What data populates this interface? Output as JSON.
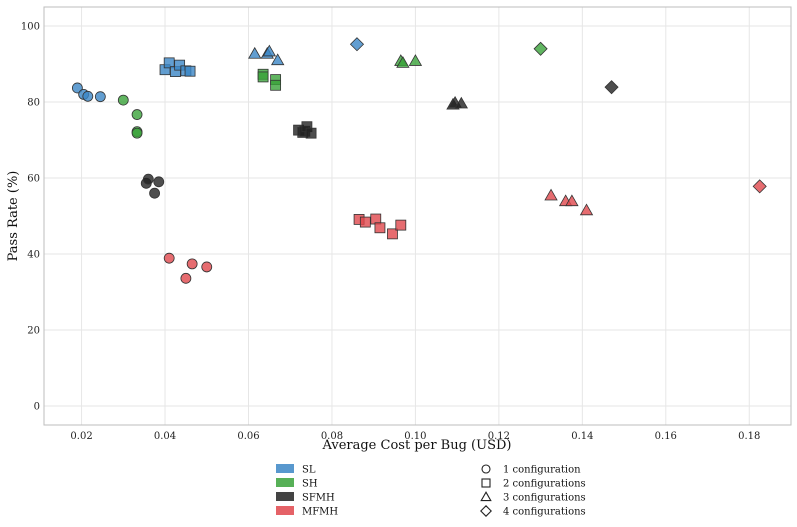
{
  "chart_data": {
    "type": "scatter",
    "title": "",
    "xlabel": "Average Cost per Bug (USD)",
    "ylabel": "Pass Rate (%)",
    "xlim": [
      0.011,
      0.19
    ],
    "ylim": [
      -5,
      105
    ],
    "xticks": [
      0.02,
      0.04,
      0.06,
      0.08,
      0.1,
      0.12,
      0.14,
      0.16,
      0.18
    ],
    "xtick_labels": [
      "0.02",
      "0.04",
      "0.06",
      "0.08",
      "0.10",
      "0.12",
      "0.14",
      "0.16",
      "0.18"
    ],
    "yticks": [
      0,
      20,
      40,
      60,
      80,
      100
    ],
    "ytick_labels": [
      "0",
      "20",
      "40",
      "60",
      "80",
      "100"
    ],
    "grid": true,
    "legend_position": "bottom",
    "color_legend": [
      {
        "name": "SL",
        "color": "#3b86c6"
      },
      {
        "name": "SH",
        "color": "#3aa23a"
      },
      {
        "name": "SFMH",
        "color": "#222222"
      },
      {
        "name": "MFMH",
        "color": "#e0474c"
      }
    ],
    "marker_legend": [
      {
        "marker": "circle",
        "label": "1 configuration"
      },
      {
        "marker": "square",
        "label": "2 configurations"
      },
      {
        "marker": "triangle",
        "label": "3 configurations"
      },
      {
        "marker": "diamond",
        "label": "4 configurations"
      }
    ],
    "series": [
      {
        "name": "SL",
        "color": "#3b86c6",
        "groups": [
          {
            "marker": "circle",
            "points": [
              [
                0.019,
                83.7
              ],
              [
                0.0205,
                82.0
              ],
              [
                0.0215,
                81.5
              ],
              [
                0.0245,
                81.4
              ]
            ]
          },
          {
            "marker": "square",
            "points": [
              [
                0.04,
                88.5
              ],
              [
                0.041,
                90.3
              ],
              [
                0.0425,
                88.0
              ],
              [
                0.0435,
                89.7
              ],
              [
                0.045,
                88.2
              ],
              [
                0.046,
                88.1
              ]
            ]
          },
          {
            "marker": "triangle",
            "points": [
              [
                0.0615,
                92.7
              ],
              [
                0.0645,
                92.7
              ],
              [
                0.065,
                93.3
              ],
              [
                0.067,
                91.0
              ]
            ]
          },
          {
            "marker": "diamond",
            "points": [
              [
                0.086,
                95.2
              ]
            ]
          }
        ]
      },
      {
        "name": "SH",
        "color": "#3aa23a",
        "groups": [
          {
            "marker": "circle",
            "points": [
              [
                0.03,
                80.5
              ],
              [
                0.0333,
                76.7
              ],
              [
                0.0333,
                72.2
              ],
              [
                0.0333,
                71.8
              ]
            ]
          },
          {
            "marker": "square",
            "points": [
              [
                0.0635,
                87.3
              ],
              [
                0.0635,
                86.6
              ],
              [
                0.0665,
                85.9
              ],
              [
                0.0665,
                84.4
              ]
            ]
          },
          {
            "marker": "triangle",
            "points": [
              [
                0.0965,
                90.8
              ],
              [
                0.097,
                90.3
              ],
              [
                0.1,
                90.8
              ]
            ]
          },
          {
            "marker": "diamond",
            "points": [
              [
                0.13,
                94.0
              ]
            ]
          }
        ]
      },
      {
        "name": "SFMH",
        "color": "#222222",
        "groups": [
          {
            "marker": "circle",
            "points": [
              [
                0.0355,
                58.6
              ],
              [
                0.036,
                59.7
              ],
              [
                0.0375,
                56.0
              ],
              [
                0.0385,
                59.0
              ]
            ]
          },
          {
            "marker": "square",
            "points": [
              [
                0.072,
                72.6
              ],
              [
                0.073,
                72.0
              ],
              [
                0.0735,
                72.3
              ],
              [
                0.074,
                73.5
              ],
              [
                0.075,
                71.8
              ]
            ]
          },
          {
            "marker": "triangle",
            "points": [
              [
                0.109,
                79.3
              ],
              [
                0.1095,
                79.8
              ],
              [
                0.111,
                79.6
              ]
            ]
          },
          {
            "marker": "diamond",
            "points": [
              [
                0.147,
                83.9
              ]
            ]
          }
        ]
      },
      {
        "name": "MFMH",
        "color": "#e0474c",
        "groups": [
          {
            "marker": "circle",
            "points": [
              [
                0.041,
                38.9
              ],
              [
                0.045,
                33.6
              ],
              [
                0.0465,
                37.4
              ],
              [
                0.05,
                36.6
              ]
            ]
          },
          {
            "marker": "square",
            "points": [
              [
                0.0865,
                49.1
              ],
              [
                0.088,
                48.4
              ],
              [
                0.0905,
                49.2
              ],
              [
                0.0915,
                46.9
              ],
              [
                0.0945,
                45.3
              ],
              [
                0.0965,
                47.6
              ]
            ]
          },
          {
            "marker": "triangle",
            "points": [
              [
                0.1325,
                55.4
              ],
              [
                0.136,
                53.9
              ],
              [
                0.1375,
                53.9
              ],
              [
                0.141,
                51.5
              ]
            ]
          },
          {
            "marker": "diamond",
            "points": [
              [
                0.1825,
                57.8
              ]
            ]
          }
        ]
      }
    ]
  }
}
